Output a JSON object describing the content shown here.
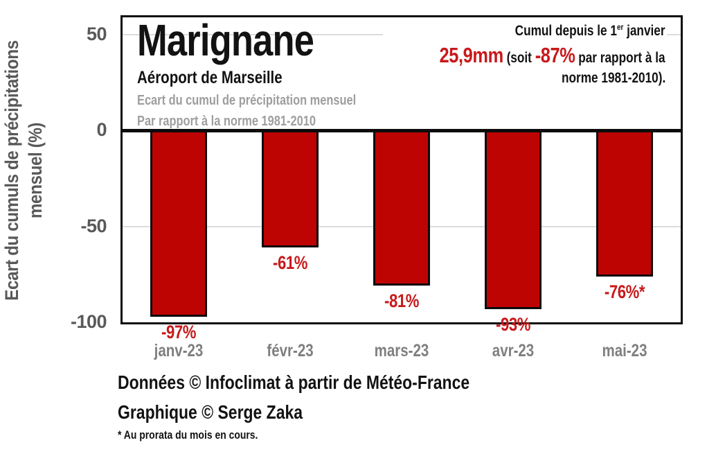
{
  "title": {
    "main": "Marignane",
    "subtitle": "Aéroport de Marseille",
    "desc_line1": "Ecart du cumul de précipitation mensuel",
    "desc_line2": "Par rapport à la norme 1981-2010"
  },
  "annotation": {
    "line1_prefix": "Cumul depuis le 1",
    "line1_sup": "er",
    "line1_suffix": " janvier",
    "cumul_value": "25,9mm",
    "mid1": " (soit ",
    "cumul_pct": "-87%",
    "mid2": " par rapport à la",
    "line3": "norme 1981-2010)."
  },
  "y_axis": {
    "title_line1": "Ecart du cumuls de précipitations",
    "title_line2": "mensuel (%)"
  },
  "footer": {
    "credit1": "Données © Infoclimat à partir de Météo-France",
    "credit2": "Graphique © Serge Zaka",
    "footnote": "* Au prorata du mois en cours."
  },
  "colors": {
    "bar_fill": "#be0303",
    "bar_border": "#0b0b0b",
    "red_text": "#c8191b",
    "axis_gray": "#595959",
    "xtick_gray": "#7f7f7f",
    "desc_gray": "#9e9e9e",
    "gridline": "#dcdcdc",
    "black": "#121212"
  },
  "chart_data": {
    "type": "bar",
    "categories": [
      "janv-23",
      "févr-23",
      "mars-23",
      "avr-23",
      "mai-23"
    ],
    "values": [
      -97,
      -61,
      -81,
      -93,
      -76
    ],
    "bar_labels": [
      "-97%",
      "-61%",
      "-81%",
      "-93%",
      "-76%*"
    ],
    "title": "Marignane",
    "subtitle": "Aéroport de Marseille — Ecart du cumul de précipitation mensuel par rapport à la norme 1981-2010",
    "xlabel": "",
    "ylabel": "Ecart du cumuls de précipitations mensuel (%)",
    "ylim": [
      -100,
      57
    ],
    "yticks": [
      50,
      0,
      -50,
      -100
    ],
    "grid": "horizontal-light",
    "legend": "none",
    "bar_color": "#be0303",
    "label_color": "#c8191b",
    "annotation": "Cumul depuis le 1er janvier 25,9mm (soit -87% par rapport à la norme 1981-2010)."
  }
}
